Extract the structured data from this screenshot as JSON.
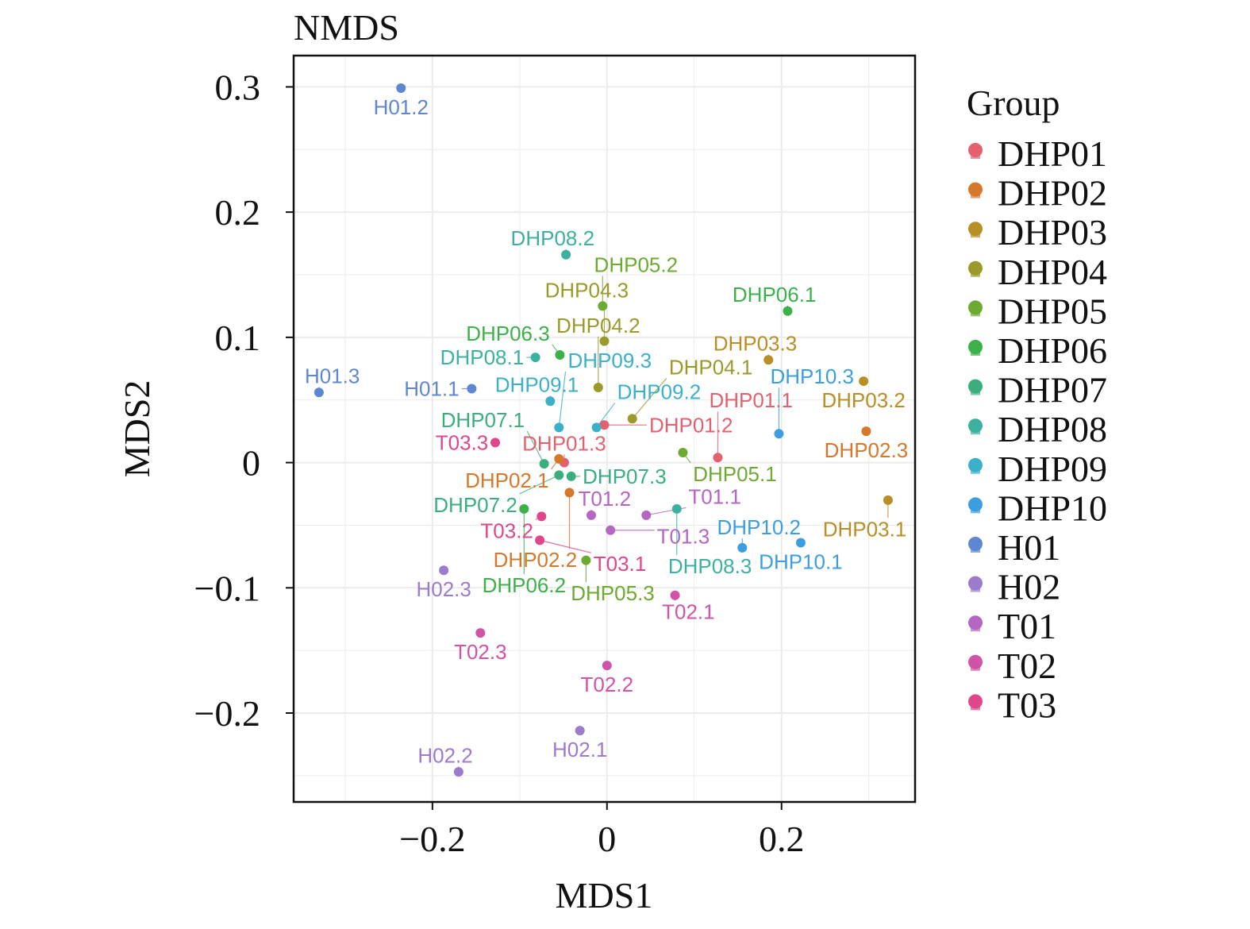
{
  "chart_data": {
    "type": "scatter",
    "title": "NMDS",
    "xlabel": "MDS1",
    "ylabel": "MDS2",
    "xlim": [
      -0.359,
      0.353
    ],
    "ylim": [
      -0.271,
      0.325
    ],
    "xticks": [
      -0.2,
      0,
      0.2
    ],
    "xtick_labels": [
      "−0.2",
      "0",
      "0.2"
    ],
    "yticks": [
      -0.2,
      -0.1,
      0,
      0.1,
      0.2,
      0.3
    ],
    "ytick_labels": [
      "−0.2",
      "−0.1",
      "0",
      "0.1",
      "0.2",
      "0.3"
    ],
    "grid": true,
    "legend": {
      "title": "Group",
      "placement": "right"
    },
    "groups": [
      {
        "name": "DHP01",
        "color": "#E3616E"
      },
      {
        "name": "DHP02",
        "color": "#D5782B"
      },
      {
        "name": "DHP03",
        "color": "#B88E26"
      },
      {
        "name": "DHP04",
        "color": "#9A9A2A"
      },
      {
        "name": "DHP05",
        "color": "#6DAA32"
      },
      {
        "name": "DHP06",
        "color": "#3DB04A"
      },
      {
        "name": "DHP07",
        "color": "#3BAE7E"
      },
      {
        "name": "DHP08",
        "color": "#3DB1A0"
      },
      {
        "name": "DHP09",
        "color": "#3BB0C8"
      },
      {
        "name": "DHP10",
        "color": "#3C9EE0"
      },
      {
        "name": "H01",
        "color": "#5F86D0"
      },
      {
        "name": "H02",
        "color": "#9B7BCB"
      },
      {
        "name": "T01",
        "color": "#B565C2"
      },
      {
        "name": "T02",
        "color": "#D053A8"
      },
      {
        "name": "T03",
        "color": "#E0478A"
      }
    ],
    "points": [
      {
        "label": "DHP01.1",
        "group": "DHP01",
        "x": 0.127,
        "y": 0.004
      },
      {
        "label": "DHP01.2",
        "group": "DHP01",
        "x": -0.003,
        "y": 0.03
      },
      {
        "label": "DHP01.3",
        "group": "DHP01",
        "x": -0.049,
        "y": 0.0
      },
      {
        "label": "DHP02.1",
        "group": "DHP02",
        "x": -0.055,
        "y": 0.003
      },
      {
        "label": "DHP02.2",
        "group": "DHP02",
        "x": -0.043,
        "y": -0.024
      },
      {
        "label": "DHP02.3",
        "group": "DHP02",
        "x": 0.297,
        "y": 0.025
      },
      {
        "label": "DHP03.1",
        "group": "DHP03",
        "x": 0.322,
        "y": -0.03
      },
      {
        "label": "DHP03.2",
        "group": "DHP03",
        "x": 0.294,
        "y": 0.065
      },
      {
        "label": "DHP03.3",
        "group": "DHP03",
        "x": 0.185,
        "y": 0.082
      },
      {
        "label": "DHP04.1",
        "group": "DHP04",
        "x": 0.029,
        "y": 0.035
      },
      {
        "label": "DHP04.2",
        "group": "DHP04",
        "x": -0.01,
        "y": 0.06
      },
      {
        "label": "DHP04.3",
        "group": "DHP04",
        "x": -0.003,
        "y": 0.097
      },
      {
        "label": "DHP05.1",
        "group": "DHP05",
        "x": 0.087,
        "y": 0.008
      },
      {
        "label": "DHP05.2",
        "group": "DHP05",
        "x": -0.005,
        "y": 0.125
      },
      {
        "label": "DHP05.3",
        "group": "DHP05",
        "x": -0.024,
        "y": -0.078
      },
      {
        "label": "DHP06.1",
        "group": "DHP06",
        "x": 0.207,
        "y": 0.121
      },
      {
        "label": "DHP06.2",
        "group": "DHP06",
        "x": -0.095,
        "y": -0.037
      },
      {
        "label": "DHP06.3",
        "group": "DHP06",
        "x": -0.054,
        "y": 0.086
      },
      {
        "label": "DHP07.1",
        "group": "DHP07",
        "x": -0.072,
        "y": -0.001
      },
      {
        "label": "DHP07.2",
        "group": "DHP07",
        "x": -0.055,
        "y": -0.01
      },
      {
        "label": "DHP07.3",
        "group": "DHP07",
        "x": -0.041,
        "y": -0.011
      },
      {
        "label": "DHP08.1",
        "group": "DHP08",
        "x": -0.082,
        "y": 0.084
      },
      {
        "label": "DHP08.2",
        "group": "DHP08",
        "x": -0.047,
        "y": 0.166
      },
      {
        "label": "DHP08.3",
        "group": "DHP08",
        "x": 0.08,
        "y": -0.037
      },
      {
        "label": "DHP09.1",
        "group": "DHP09",
        "x": -0.065,
        "y": 0.049
      },
      {
        "label": "DHP09.2",
        "group": "DHP09",
        "x": -0.012,
        "y": 0.028
      },
      {
        "label": "DHP09.3",
        "group": "DHP09",
        "x": -0.055,
        "y": 0.028
      },
      {
        "label": "DHP10.1",
        "group": "DHP10",
        "x": 0.222,
        "y": -0.064
      },
      {
        "label": "DHP10.2",
        "group": "DHP10",
        "x": 0.155,
        "y": -0.068
      },
      {
        "label": "DHP10.3",
        "group": "DHP10",
        "x": 0.197,
        "y": 0.023
      },
      {
        "label": "H01.1",
        "group": "H01",
        "x": -0.155,
        "y": 0.059
      },
      {
        "label": "H01.2",
        "group": "H01",
        "x": -0.236,
        "y": 0.299
      },
      {
        "label": "H01.3",
        "group": "H01",
        "x": -0.33,
        "y": 0.056
      },
      {
        "label": "H02.1",
        "group": "H02",
        "x": -0.031,
        "y": -0.214
      },
      {
        "label": "H02.2",
        "group": "H02",
        "x": -0.17,
        "y": -0.247
      },
      {
        "label": "H02.3",
        "group": "H02",
        "x": -0.187,
        "y": -0.086
      },
      {
        "label": "T01.1",
        "group": "T01",
        "x": 0.045,
        "y": -0.042
      },
      {
        "label": "T01.2",
        "group": "T01",
        "x": -0.018,
        "y": -0.042
      },
      {
        "label": "T01.3",
        "group": "T01",
        "x": 0.004,
        "y": -0.054
      },
      {
        "label": "T02.1",
        "group": "T02",
        "x": 0.078,
        "y": -0.106
      },
      {
        "label": "T02.2",
        "group": "T02",
        "x": 0.0,
        "y": -0.162
      },
      {
        "label": "T02.3",
        "group": "T02",
        "x": -0.145,
        "y": -0.136
      },
      {
        "label": "T03.1",
        "group": "T03",
        "x": -0.077,
        "y": -0.062
      },
      {
        "label": "T03.2",
        "group": "T03",
        "x": -0.075,
        "y": -0.043
      },
      {
        "label": "T03.3",
        "group": "T03",
        "x": -0.128,
        "y": 0.016
      }
    ]
  }
}
